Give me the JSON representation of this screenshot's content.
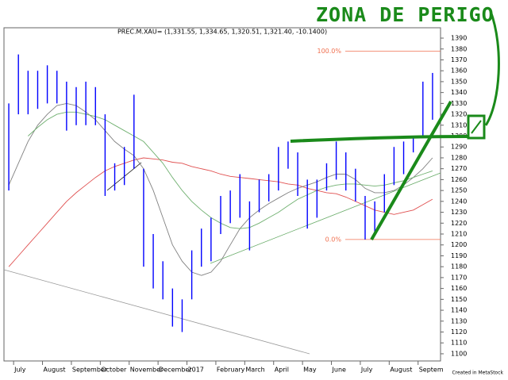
{
  "chart_data": {
    "type": "ohlc",
    "title": "PREC.M.XAU= (1,331.55, 1,334.65, 1,320.51, 1,321.40, -10.1400)",
    "categories": [
      null,
      "July",
      null,
      null,
      "August",
      null,
      null,
      "September",
      null,
      null,
      "October",
      null,
      null,
      "November",
      null,
      null,
      "December",
      null,
      null,
      "2017",
      null,
      null,
      "February",
      null,
      null,
      "March",
      null,
      null,
      "April",
      null,
      null,
      "May",
      null,
      null,
      "June",
      null,
      null,
      "July",
      null,
      null,
      "August",
      null,
      null,
      "Septem",
      null
    ],
    "high": [
      1330,
      1375,
      1360,
      1360,
      1365,
      1360,
      1350,
      1345,
      1350,
      1345,
      1320,
      1275,
      1290,
      1338,
      1270,
      1210,
      1185,
      1160,
      1150,
      1195,
      1215,
      1225,
      1245,
      1250,
      1265,
      1240,
      1260,
      1265,
      1290,
      1295,
      1285,
      1260,
      1260,
      1275,
      1295,
      1285,
      1270,
      1245,
      1240,
      1265,
      1290,
      1295,
      1300,
      1350,
      1358
    ],
    "low": [
      1250,
      1320,
      1320,
      1325,
      1330,
      1330,
      1305,
      1310,
      1310,
      1310,
      1245,
      1250,
      1255,
      1270,
      1180,
      1160,
      1150,
      1125,
      1120,
      1150,
      1180,
      1185,
      1210,
      1220,
      1225,
      1195,
      1230,
      1240,
      1250,
      1270,
      1245,
      1215,
      1225,
      1250,
      1260,
      1250,
      1240,
      1205,
      1210,
      1230,
      1255,
      1265,
      1285,
      1300,
      1315
    ],
    "color": "#0000ff",
    "moving_averages": [
      {
        "color": "#e05050",
        "values": [
          1180,
          1190,
          1200,
          1210,
          1220,
          1230,
          1240,
          1248,
          1255,
          1262,
          1268,
          1272,
          1275,
          1278,
          1280,
          1279,
          1278,
          1276,
          1275,
          1272,
          1270,
          1268,
          1265,
          1263,
          1262,
          1261,
          1260,
          1259,
          1258,
          1256,
          1255,
          1252,
          1250,
          1248,
          1247,
          1244,
          1240,
          1236,
          1232,
          1230,
          1228,
          1230,
          1232,
          1237,
          1242
        ]
      },
      {
        "color": "#808080",
        "values": [
          1255,
          1275,
          1295,
          1310,
          1320,
          1328,
          1330,
          1328,
          1322,
          1315,
          1305,
          1295,
          1288,
          1282,
          1270,
          1250,
          1225,
          1200,
          1185,
          1175,
          1172,
          1175,
          1185,
          1200,
          1215,
          1225,
          1232,
          1238,
          1243,
          1248,
          1252,
          1255,
          1258,
          1262,
          1265,
          1265,
          1260,
          1252,
          1248,
          1248,
          1250,
          1255,
          1262,
          1270,
          1280
        ]
      },
      {
        "color": "#70b070",
        "values": [
          null,
          null,
          1300,
          1308,
          1315,
          1320,
          1322,
          1322,
          1320,
          1318,
          1315,
          1310,
          1305,
          1300,
          1295,
          1285,
          1275,
          1262,
          1250,
          1240,
          1232,
          1225,
          1220,
          1216,
          1215,
          1216,
          1220,
          1225,
          1230,
          1236,
          1242,
          1246,
          1250,
          1253,
          1255,
          1256,
          1256,
          1255,
          1254,
          1255,
          1257,
          1259,
          1262,
          1265,
          1268
        ]
      }
    ],
    "fib_levels": [
      {
        "label": "100.0%",
        "value": 1378
      },
      {
        "label": "0.0%",
        "value": 1205
      }
    ],
    "fib_color": "#f07050",
    "ylim": [
      1093.4,
      1399.5
    ],
    "yticks": [
      1100,
      1110,
      1120,
      1130,
      1140,
      1150,
      1160,
      1170,
      1180,
      1190,
      1200,
      1210,
      1220,
      1230,
      1240,
      1250,
      1260,
      1270,
      1280,
      1290,
      1300,
      1310,
      1320,
      1330,
      1340,
      1350,
      1360,
      1370,
      1380,
      1390
    ],
    "annotation": "ZONA DE PERIGO",
    "credit": "Created in MetaStock"
  }
}
